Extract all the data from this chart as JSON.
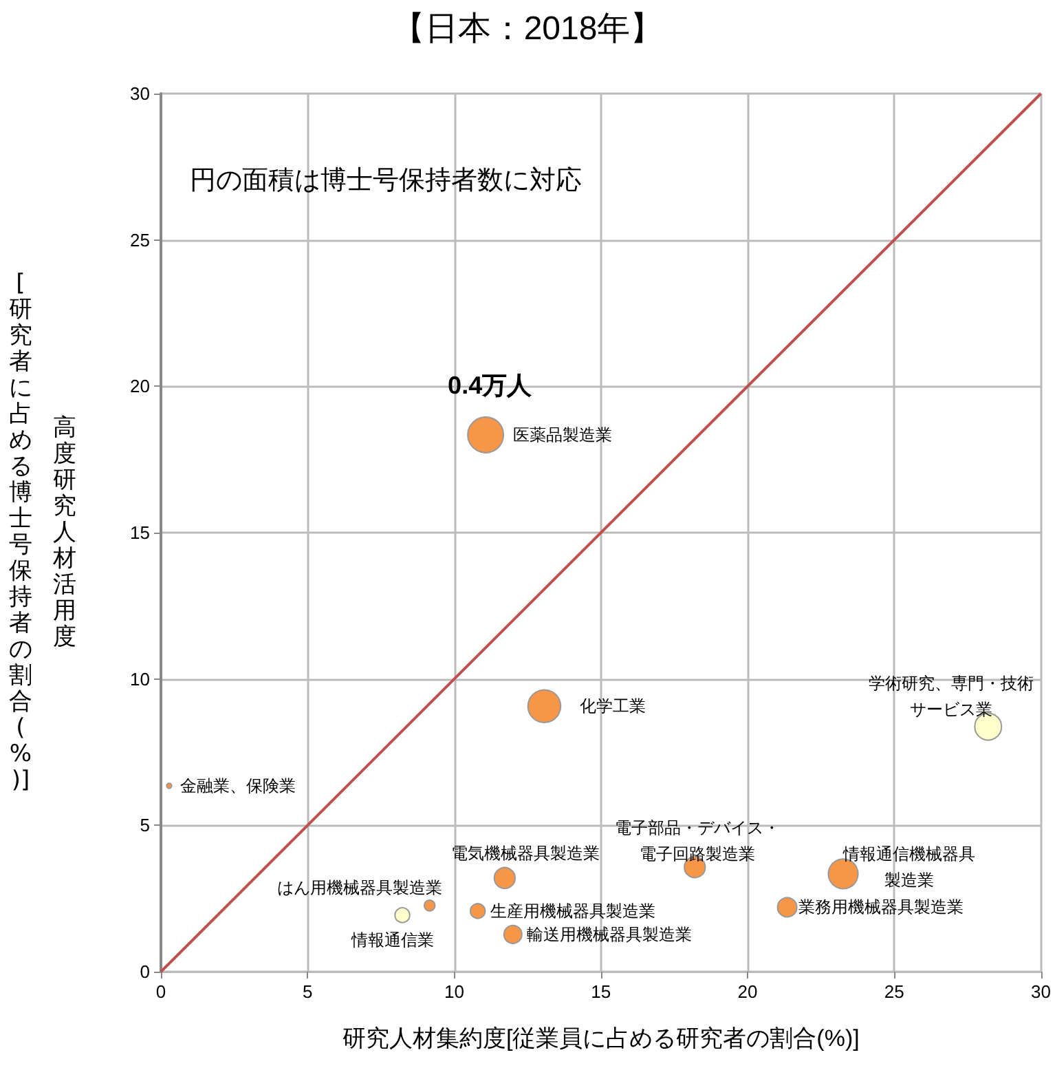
{
  "chart_data": {
    "type": "bubble",
    "title": "【日本：2018年】",
    "xlabel": "研究人材集約度[従業員に占める研究者の割合(%)]",
    "ylabel": "高度研究人材活用度\n[研究者に占める博士号保持者の割合(%)]",
    "annotations": [
      "円の面積は博士号保持者数に対応",
      {
        "text": "0.4万人",
        "x": 11.07,
        "y": 18.34
      },
      {
        "text": "医薬品製造業",
        "x": 11.07,
        "y": 18.34
      },
      {
        "text": "化学工業",
        "x": 13.07,
        "y": 9.07
      },
      {
        "text": "金融業、保険業",
        "x": 0.28,
        "y": 6.35
      },
      {
        "text": "学術研究、専門・技術サービス業",
        "x": 28.2,
        "y": 8.37
      },
      {
        "text": "電子部品・デバイス・電子回路製造業",
        "x": 18.2,
        "y": 3.57
      },
      {
        "text": "情報通信機械器具製造業",
        "x": 23.26,
        "y": 3.34
      },
      {
        "text": "業務用機械器具製造業",
        "x": 21.35,
        "y": 2.2
      },
      {
        "text": "電気機械器具製造業",
        "x": 11.72,
        "y": 3.2
      },
      {
        "text": "はん用機械器具製造業",
        "x": 9.16,
        "y": 2.26
      },
      {
        "text": "情報通信業",
        "x": 8.23,
        "y": 1.93
      },
      {
        "text": "生産用機械器具製造業",
        "x": 10.8,
        "y": 2.07
      },
      {
        "text": "輸送用機械器具製造業",
        "x": 12.0,
        "y": 1.27
      }
    ],
    "series": [
      {
        "color": "#f79646",
        "x": [
          11.07,
          13.07,
          0.28,
          18.2,
          23.26,
          21.35,
          11.72,
          9.16,
          10.8,
          12.0
        ],
        "values": [
          18.34,
          9.07,
          6.35,
          3.57,
          3.34,
          2.2,
          3.2,
          2.26,
          2.07,
          1.27
        ],
        "sizes": [
          1,
          0.84,
          0.02,
          0.34,
          0.69,
          0.29,
          0.34,
          0.09,
          0.17,
          0.25
        ]
      },
      {
        "color": "#ffffcc",
        "x": [
          28.2,
          8.23
        ],
        "values": [
          8.37,
          1.93
        ],
        "sizes": [
          0.56,
          0.17
        ]
      },
      {
        "type": "line",
        "color": "#c0504d",
        "x": [
          0,
          30
        ],
        "values": [
          0,
          30
        ],
        "marker": "none"
      }
    ],
    "xlim": [
      0,
      30
    ],
    "ylim": [
      0,
      30
    ],
    "xticks": [
      0,
      5,
      10,
      15,
      20,
      25,
      30
    ],
    "yticks": [
      0,
      5,
      10,
      15,
      20,
      25,
      30
    ],
    "grid": true,
    "marker": "circle"
  }
}
